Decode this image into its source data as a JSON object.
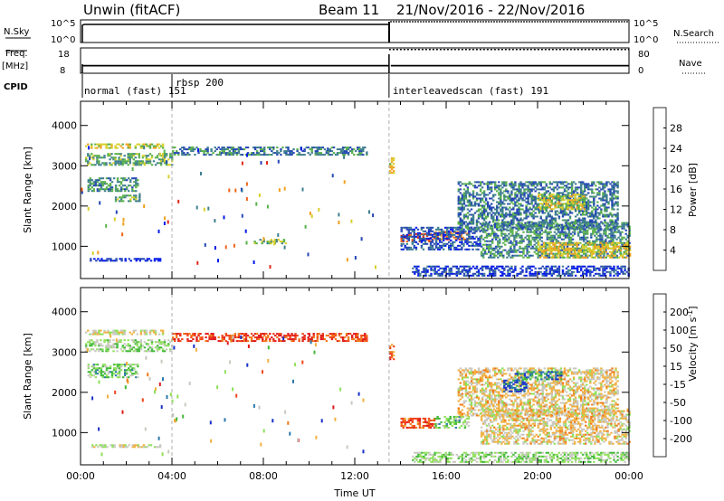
{
  "chart_data": [
    {
      "type": "line",
      "panel": "summary",
      "header": {
        "station": "Unwin (fitACF)",
        "beam": "Beam 11",
        "date_range": "21/Nov/2016 - 22/Nov/2016"
      },
      "left_labels": {
        "nsky": "N.Sky",
        "freq": "Freq.",
        "freq_unit": "[MHz]",
        "cpid": "CPID"
      },
      "right_labels": {
        "nsearch": "N.Search",
        "nave": "Nave"
      },
      "nsky_ticks": [
        "10^5",
        "10^0"
      ],
      "nsearch_ticks": [
        "10^5",
        "10^0"
      ],
      "freq_ticks": [
        "18",
        "8"
      ],
      "nave_ticks": [
        "80",
        "0"
      ],
      "freq_mhz_segments": [
        {
          "x_start_h": 0.0,
          "x_end_h": 13.5,
          "value": 11
        },
        {
          "x_start_h": 13.5,
          "x_end_h": 24.0,
          "value": 11
        }
      ],
      "nave_segments": [
        {
          "x_start_h": 13.5,
          "x_end_h": 24.0,
          "value": 75
        }
      ],
      "cpid_segments": [
        {
          "x_start_h": 0.0,
          "label": "normal (fast) 151"
        },
        {
          "x_start_h": 4.0,
          "label": "rbsp 200"
        },
        {
          "x_start_h": 13.5,
          "label": "interleavedscan (fast) 191"
        }
      ]
    },
    {
      "type": "heatmap",
      "panel": "power",
      "ylabel": "Slant Range [km]",
      "xlabel": "",
      "xlim_hours": [
        0,
        24
      ],
      "ylim_km": [
        200,
        4600
      ],
      "y_ticks": [
        "4000",
        "3000",
        "2000",
        "1000"
      ],
      "colorbar_label": "Power [dB]",
      "colorbar_ticks": [
        "28",
        "24",
        "20",
        "16",
        "12",
        "8",
        "4"
      ],
      "colorbar_colors": [
        "#0018e8",
        "#2446b4",
        "#3e7e8e",
        "#58b04a",
        "#d8d02a",
        "#f0a020",
        "#f06418",
        "#e02818"
      ],
      "dashed_lines_hours": [
        4.0,
        13.5
      ],
      "regions": [
        {
          "t0": 0.2,
          "t1": 3.6,
          "r0": 3420,
          "r1": 3540,
          "level": 0.55
        },
        {
          "t0": 0.2,
          "t1": 4.0,
          "r0": 3000,
          "r1": 3280,
          "level": 0.4
        },
        {
          "t0": 0.3,
          "t1": 2.5,
          "r0": 2350,
          "r1": 2700,
          "level": 0.35
        },
        {
          "t0": 1.5,
          "t1": 2.6,
          "r0": 2100,
          "r1": 2250,
          "level": 0.4
        },
        {
          "t0": 0.4,
          "t1": 3.5,
          "r0": 620,
          "r1": 680,
          "level": 0.1
        },
        {
          "t0": 4.0,
          "t1": 12.5,
          "r0": 3250,
          "r1": 3450,
          "level": 0.3
        },
        {
          "t0": 7.5,
          "t1": 9.0,
          "r0": 1050,
          "r1": 1150,
          "level": 0.45
        },
        {
          "t0": 13.5,
          "t1": 13.7,
          "r0": 2800,
          "r1": 3200,
          "level": 0.6
        },
        {
          "t0": 14.0,
          "t1": 15.5,
          "r0": 1100,
          "r1": 1300,
          "level": 0.9
        },
        {
          "t0": 15.5,
          "t1": 17.0,
          "r0": 1150,
          "r1": 1350,
          "level": 0.75
        },
        {
          "t0": 14.0,
          "t1": 17.5,
          "r0": 900,
          "r1": 1450,
          "level": 0.2
        },
        {
          "t0": 14.5,
          "t1": 24.0,
          "r0": 250,
          "r1": 500,
          "level": 0.15
        },
        {
          "t0": 17.5,
          "t1": 24.0,
          "r0": 700,
          "r1": 1600,
          "level": 0.35
        },
        {
          "t0": 16.5,
          "t1": 23.5,
          "r0": 1400,
          "r1": 2600,
          "level": 0.3
        },
        {
          "t0": 20.0,
          "t1": 24.0,
          "r0": 700,
          "r1": 1100,
          "level": 0.6
        },
        {
          "t0": 20.0,
          "t1": 22.0,
          "r0": 1900,
          "r1": 2300,
          "level": 0.55
        }
      ]
    },
    {
      "type": "heatmap",
      "panel": "velocity",
      "ylabel": "Slant Range [km]",
      "xlabel": "Time UT",
      "xlim_hours": [
        0,
        24
      ],
      "ylim_km": [
        200,
        4600
      ],
      "x_ticks": [
        "00:00",
        "04:00",
        "08:00",
        "12:00",
        "16:00",
        "20:00",
        "00:00"
      ],
      "y_ticks": [
        "4000",
        "3000",
        "2000",
        "1000"
      ],
      "colorbar_label": "Velocity [m s",
      "colorbar_label_sup": "-1",
      "colorbar_label_end": "]",
      "colorbar_ticks": [
        "200",
        "100",
        "50",
        "15",
        "-15",
        "-50",
        "-100",
        "-200"
      ],
      "colorbar_colors": [
        "#e01818",
        "#f04418",
        "#f07818",
        "#f0b040",
        "#c8c8c0",
        "#8ee05a",
        "#40b838",
        "#2a78a8",
        "#1830c8"
      ],
      "dashed_lines_hours": [
        4.0,
        13.5
      ],
      "regions": [
        {
          "t0": 0.2,
          "t1": 3.6,
          "r0": 3420,
          "r1": 3540,
          "level": 0.5
        },
        {
          "t0": 0.2,
          "t1": 4.0,
          "r0": 3000,
          "r1": 3280,
          "level": 0.6
        },
        {
          "t0": 0.3,
          "t1": 2.5,
          "r0": 2350,
          "r1": 2700,
          "level": 0.65
        },
        {
          "t0": 0.4,
          "t1": 3.5,
          "r0": 620,
          "r1": 680,
          "level": 0.5
        },
        {
          "t0": 4.0,
          "t1": 12.5,
          "r0": 3250,
          "r1": 3450,
          "level": 0.15
        },
        {
          "t0": 13.5,
          "t1": 13.7,
          "r0": 2800,
          "r1": 3200,
          "level": 0.25
        },
        {
          "t0": 14.0,
          "t1": 15.5,
          "r0": 1100,
          "r1": 1350,
          "level": 0.2
        },
        {
          "t0": 15.5,
          "t1": 17.0,
          "r0": 1100,
          "r1": 1400,
          "level": 0.65
        },
        {
          "t0": 14.5,
          "t1": 24.0,
          "r0": 250,
          "r1": 500,
          "level": 0.6
        },
        {
          "t0": 17.5,
          "t1": 24.0,
          "r0": 700,
          "r1": 1600,
          "level": 0.45
        },
        {
          "t0": 16.5,
          "t1": 23.5,
          "r0": 1400,
          "r1": 2600,
          "level": 0.45
        },
        {
          "t0": 18.5,
          "t1": 19.5,
          "r0": 2000,
          "r1": 2300,
          "level": 0.9
        },
        {
          "t0": 19.0,
          "t1": 21.0,
          "r0": 2300,
          "r1": 2500,
          "level": 0.8
        }
      ]
    }
  ]
}
